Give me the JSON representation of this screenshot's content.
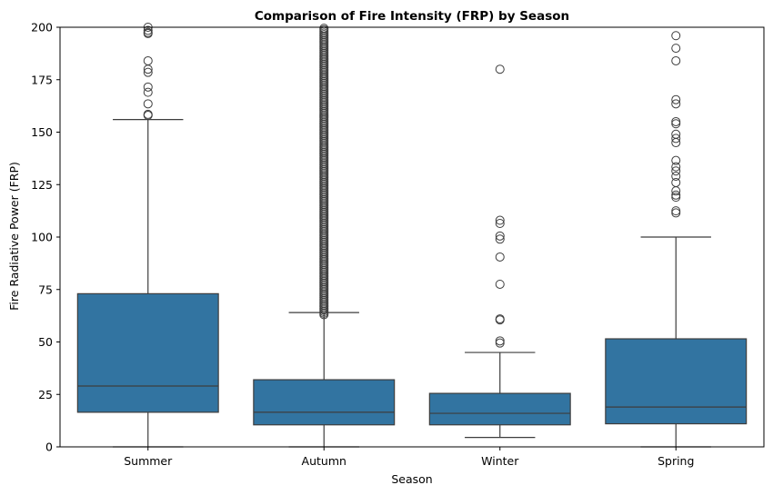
{
  "chart_data": {
    "type": "box",
    "title": "Comparison of Fire Intensity (FRP) by Season",
    "xlabel": "Season",
    "ylabel": "Fire Radiative Power (FRP)",
    "ylim": [
      0,
      200
    ],
    "yticks": [
      0,
      25,
      50,
      75,
      100,
      125,
      150,
      175,
      200
    ],
    "grid": false,
    "box_color": "#3274a1",
    "line_color": "#3d3d3d",
    "categories": [
      "Summer",
      "Autumn",
      "Winter",
      "Spring"
    ],
    "boxes": [
      {
        "category": "Summer",
        "whisker_low": 0,
        "q1": 16.5,
        "median": 29,
        "q3": 73,
        "whisker_high": 156,
        "outliers": [
          158,
          158.5,
          163.5,
          169,
          171.5,
          178.5,
          180,
          184,
          197,
          197.5,
          198.5,
          200
        ]
      },
      {
        "category": "Autumn",
        "whisker_low": 0,
        "q1": 10.5,
        "median": 16.5,
        "q3": 32,
        "whisker_high": 64,
        "outliers_dense_range": [
          63,
          200
        ],
        "outliers": []
      },
      {
        "category": "Winter",
        "whisker_low": 4.5,
        "q1": 10.5,
        "median": 16,
        "q3": 25.5,
        "whisker_high": 45,
        "outliers": [
          49.5,
          50.5,
          60.5,
          61,
          77.5,
          90.5,
          99,
          100.5,
          106.5,
          108,
          180
        ]
      },
      {
        "category": "Spring",
        "whisker_low": 0,
        "q1": 11,
        "median": 19,
        "q3": 51.5,
        "whisker_high": 100,
        "outliers": [
          111.5,
          112.5,
          119,
          120,
          122,
          126,
          129,
          131.5,
          133.5,
          136.5,
          145,
          147,
          149,
          154,
          155,
          163.5,
          165.5,
          184,
          190,
          196
        ]
      }
    ]
  }
}
